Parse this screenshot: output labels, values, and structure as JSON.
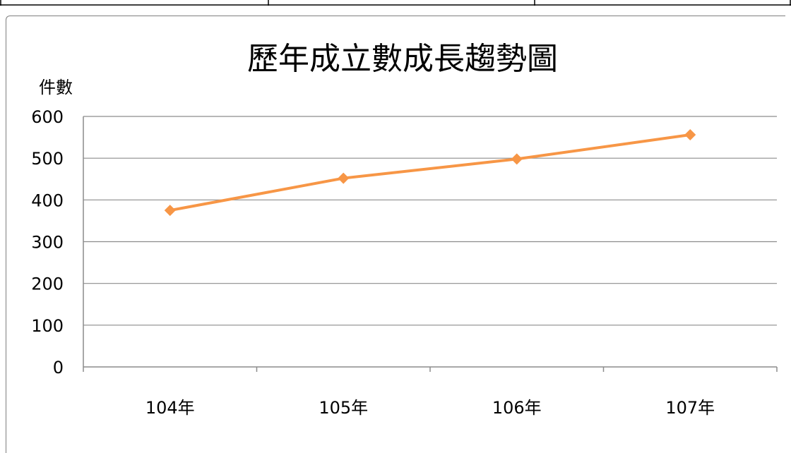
{
  "chart_data": {
    "type": "line",
    "title": "歷年成立數成長趨勢圖",
    "xlabel": "",
    "ylabel": "件數",
    "categories": [
      "104年",
      "105年",
      "106年",
      "107年"
    ],
    "series": [
      {
        "values": [
          375,
          452,
          498,
          556
        ],
        "color": "#f79646"
      }
    ],
    "ylim": [
      0,
      600
    ],
    "yticks": [
      0,
      100,
      200,
      300,
      400,
      500,
      600
    ],
    "grid": true,
    "legend": "none"
  }
}
